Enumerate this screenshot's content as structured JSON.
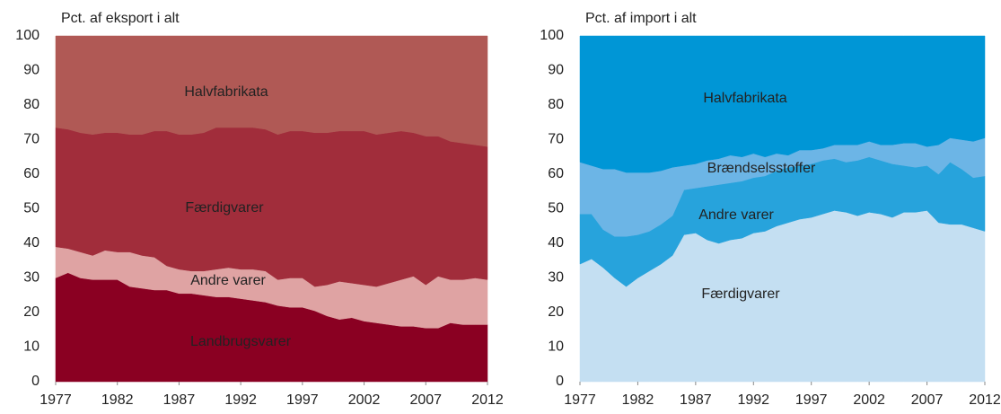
{
  "chart_data": [
    {
      "type": "area",
      "stacked": true,
      "ylabel": "Pct. af eksport i alt",
      "x": [
        1977,
        1978,
        1979,
        1980,
        1981,
        1982,
        1983,
        1984,
        1985,
        1986,
        1987,
        1988,
        1989,
        1990,
        1991,
        1992,
        1993,
        1994,
        1995,
        1996,
        1997,
        1998,
        1999,
        2000,
        2001,
        2002,
        2003,
        2004,
        2005,
        2006,
        2007,
        2008,
        2009,
        2010,
        2011,
        2012
      ],
      "xlim": [
        1977,
        2012
      ],
      "xticks": [
        1977,
        1982,
        1987,
        1992,
        1997,
        2002,
        2007,
        2012
      ],
      "ylim": [
        0,
        100
      ],
      "yticks": [
        0,
        10,
        20,
        30,
        40,
        50,
        60,
        70,
        80,
        90,
        100
      ],
      "series": [
        {
          "name": "Landbrugsvarer",
          "color": "#8a0022",
          "values": [
            30,
            31.5,
            30,
            29.5,
            29.5,
            29.5,
            27.5,
            27,
            26.5,
            26.5,
            25.5,
            25.5,
            25,
            24.5,
            24.5,
            24,
            23.5,
            23,
            22,
            21.5,
            21.5,
            20.5,
            19,
            18,
            18.5,
            17.5,
            17,
            16.5,
            16,
            16,
            15.5,
            15.5,
            17,
            16.5,
            16.5,
            16.5
          ]
        },
        {
          "name": "Andre varer",
          "color": "#dfa3a3",
          "values": [
            9,
            7,
            7.5,
            7,
            8.5,
            8,
            10,
            9.5,
            9.5,
            7,
            7,
            6.5,
            7,
            8,
            8.5,
            8.5,
            9,
            9,
            7.5,
            8.5,
            8.5,
            7,
            9,
            11,
            10,
            10.5,
            10.5,
            12,
            13.5,
            14.5,
            12.5,
            15,
            12.5,
            13,
            13.5,
            13
          ]
        },
        {
          "name": "Færdigvarer",
          "color": "#a12d3b",
          "values": [
            34.5,
            34.5,
            34.5,
            35,
            34,
            34.5,
            34,
            35,
            36.5,
            39,
            39,
            39.5,
            40,
            41,
            40.5,
            41,
            41,
            41,
            42,
            42.5,
            42.5,
            44.5,
            44,
            43.5,
            44,
            44.5,
            44,
            43.5,
            43,
            41.5,
            43,
            40.5,
            40,
            39.5,
            38.5,
            38.5
          ]
        },
        {
          "name": "Halvfabrikata",
          "color": "#b05955",
          "values": [
            26.5,
            27,
            28,
            28.5,
            28,
            28,
            28.5,
            28.5,
            27.5,
            27.5,
            28.5,
            28.5,
            28,
            26.5,
            26.5,
            26.5,
            26.5,
            27,
            28.5,
            27.5,
            27.5,
            28,
            28,
            27.5,
            27.5,
            27.5,
            28.5,
            28,
            27.5,
            28,
            29,
            29,
            30.5,
            31,
            31.5,
            32
          ]
        }
      ]
    },
    {
      "type": "area",
      "stacked": true,
      "ylabel": "Pct. af import i alt",
      "x": [
        1977,
        1978,
        1979,
        1980,
        1981,
        1982,
        1983,
        1984,
        1985,
        1986,
        1987,
        1988,
        1989,
        1990,
        1991,
        1992,
        1993,
        1994,
        1995,
        1996,
        1997,
        1998,
        1999,
        2000,
        2001,
        2002,
        2003,
        2004,
        2005,
        2006,
        2007,
        2008,
        2009,
        2010,
        2011,
        2012
      ],
      "xlim": [
        1977,
        2012
      ],
      "xticks": [
        1977,
        1982,
        1987,
        1992,
        1997,
        2002,
        2007,
        2012
      ],
      "ylim": [
        0,
        100
      ],
      "yticks": [
        0,
        10,
        20,
        30,
        40,
        50,
        60,
        70,
        80,
        90,
        100
      ],
      "series": [
        {
          "name": "Færdigvarer",
          "color": "#c4dff2",
          "values": [
            34,
            35.5,
            33,
            30,
            27.5,
            30,
            32,
            34,
            36.5,
            42.5,
            43,
            41,
            40,
            41,
            41.5,
            43,
            43.5,
            45,
            46,
            47,
            47.5,
            48.5,
            49.5,
            49,
            48,
            49,
            48.5,
            47.5,
            49,
            49,
            49.5,
            46,
            45.5,
            45.5,
            44.5,
            43.5
          ]
        },
        {
          "name": "Andre varer",
          "color": "#27a3dc",
          "values": [
            14.5,
            13,
            11,
            12,
            14.5,
            12.5,
            11.5,
            11.5,
            11.5,
            13,
            13,
            15.5,
            17,
            16.5,
            16.5,
            16,
            16,
            16,
            16,
            15.5,
            15.5,
            15.5,
            15,
            14.5,
            16,
            16,
            15.5,
            15.5,
            13.5,
            13,
            13,
            14,
            18,
            16,
            14.5,
            16
          ]
        },
        {
          "name": "Brændselsstoffer",
          "color": "#6cb5e6",
          "values": [
            15,
            14,
            17.5,
            19.5,
            18.5,
            18,
            17,
            15.5,
            14,
            7,
            7,
            7.5,
            7.5,
            8,
            7,
            7,
            5.5,
            5,
            3.5,
            4.5,
            4,
            3.5,
            4,
            5,
            4.5,
            4.5,
            4.5,
            5.5,
            6.5,
            7,
            5.5,
            8.5,
            7,
            8.5,
            10.5,
            11
          ]
        },
        {
          "name": "Halvfabrikata",
          "color": "#0096d6",
          "values": [
            36.5,
            37.5,
            38.5,
            38.5,
            39.5,
            39.5,
            39.5,
            39,
            38,
            37.5,
            37,
            36,
            35.5,
            34.5,
            35,
            34,
            35,
            34,
            34.5,
            33,
            33,
            32.5,
            31.5,
            31.5,
            31.5,
            30.5,
            31.5,
            31.5,
            31,
            31,
            32,
            31.5,
            29.5,
            30,
            30.5,
            29.5
          ]
        }
      ]
    }
  ]
}
